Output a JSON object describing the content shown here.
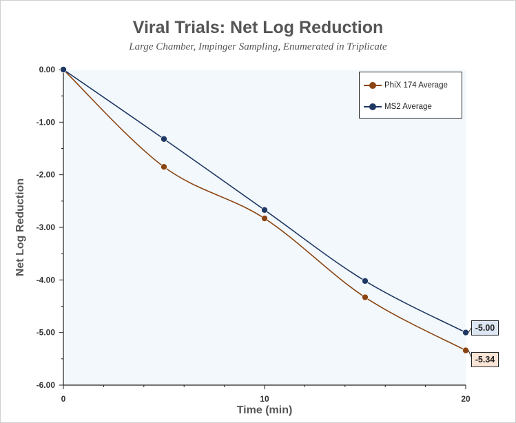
{
  "chart_data": {
    "type": "line",
    "title": "Viral Trials: Net Log Reduction",
    "subtitle": "Large Chamber, Impinger Sampling, Enumerated in Triplicate",
    "xlabel": "Time (min)",
    "ylabel": "Net Log Reduction",
    "xlim": [
      0,
      20
    ],
    "ylim": [
      -6.0,
      0.0
    ],
    "x_ticks": [
      "0",
      "10",
      "20"
    ],
    "y_ticks": [
      "0.00",
      "-1.00",
      "-2.00",
      "-3.00",
      "-4.00",
      "-5.00",
      "-6.00"
    ],
    "x": [
      0,
      5,
      10,
      15,
      20
    ],
    "series": [
      {
        "name": "PhiX 174 Average",
        "values": [
          0.0,
          -1.85,
          -2.83,
          -4.33,
          -5.34
        ],
        "color": "#8B4513"
      },
      {
        "name": "MS2 Average",
        "values": [
          0.0,
          -1.32,
          -2.67,
          -4.02,
          -5.0
        ],
        "color": "#1F3864"
      }
    ],
    "end_labels": [
      {
        "series": "MS2 Average",
        "text": "-5.00",
        "bg": "#dce6f2"
      },
      {
        "series": "PhiX 174 Average",
        "text": "-5.34",
        "bg": "#fbe5d6"
      }
    ],
    "legend_position": "top-right",
    "plot_background": "#f3f8fc",
    "grid": false
  }
}
